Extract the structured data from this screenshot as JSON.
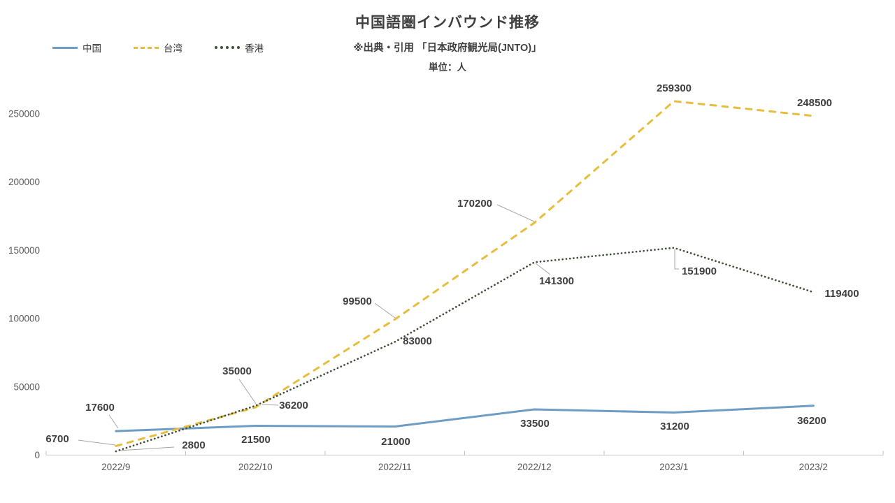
{
  "page": {
    "title": "中国語圏インバウンド推移",
    "subtitle": "※出典・引用 「日本政府観光局(JNTO)」",
    "unit_label": "単位：人"
  },
  "legend": {
    "position": "top-left",
    "items": [
      {
        "label": "中国",
        "color": "#6d9dc5",
        "style": "solid"
      },
      {
        "label": "台湾",
        "color": "#e8bd3d",
        "style": "dashed"
      },
      {
        "label": "香港",
        "color": "#414e38",
        "style": "dotted"
      }
    ]
  },
  "chart_data": {
    "type": "line",
    "title": "中国語圏インバウンド推移",
    "subtitle": "※出典・引用 「日本政府観光局(JNTO)」",
    "unit": "単位：人",
    "categories": [
      "2022/9",
      "2022/10",
      "2022/11",
      "2022/12",
      "2023/1",
      "2023/2"
    ],
    "y_ticks": [
      0,
      50000,
      100000,
      150000,
      200000,
      250000
    ],
    "ylim": [
      0,
      250000
    ],
    "grid": false,
    "legend_position": "top-left",
    "data_labels": true,
    "series": [
      {
        "name": "中国",
        "color": "#6d9dc5",
        "line_style": "solid",
        "values": [
          17600,
          21500,
          21000,
          33500,
          31200,
          36200
        ]
      },
      {
        "name": "台湾",
        "color": "#e8bd3d",
        "line_style": "dashed",
        "values": [
          6700,
          35000,
          99500,
          170200,
          259300,
          248500
        ]
      },
      {
        "name": "香港",
        "color": "#414e38",
        "line_style": "dotted",
        "values": [
          2800,
          36200,
          83000,
          141300,
          151900,
          119400
        ]
      }
    ],
    "colors": {
      "axis_line": "#d6d6d6",
      "tick_mark": "#bfbfbf",
      "axis_text": "#595959",
      "data_label_text": "#3f3f3f",
      "leader_line": "#a6a6a6"
    }
  }
}
